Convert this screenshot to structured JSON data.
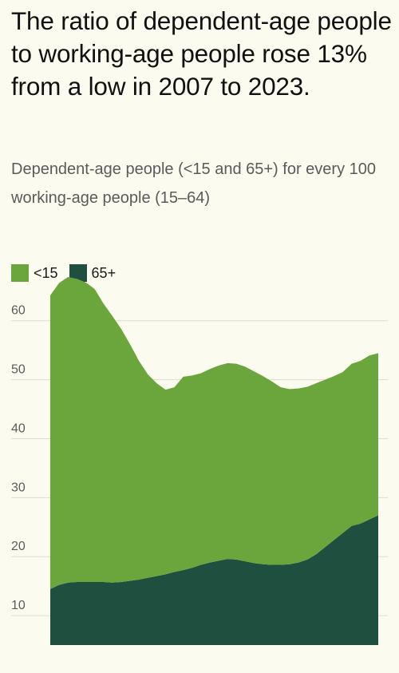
{
  "title": "The ratio of dependent-age people to working-age people rose 13% from a low in 2007 to 2023.",
  "subtitle": "Dependent-age people (<15 and 65+) for every 100 working-age people (15–64)",
  "colors": {
    "under15": "#6aa63c",
    "over65": "#1f4f3f",
    "grid": "#dcdcd2",
    "background": "#fcfbf0"
  },
  "chart_data": {
    "type": "area",
    "stacked": true,
    "ylim": [
      5,
      67
    ],
    "y_ticks": [
      10,
      20,
      30,
      40,
      50,
      60
    ],
    "grid": true,
    "legend_position": "top-left",
    "x": [
      1,
      2,
      3,
      4,
      5,
      6,
      7,
      8,
      9,
      10,
      11,
      12,
      13,
      14,
      15,
      16,
      17,
      18,
      19,
      20,
      21,
      22,
      23,
      24,
      25,
      26,
      27,
      28,
      29,
      30,
      31,
      32,
      33,
      34,
      35,
      36,
      37,
      38
    ],
    "series": [
      {
        "name": "65+",
        "color": "#1f4f3f",
        "values": [
          14.5,
          15.2,
          15.6,
          15.7,
          15.7,
          15.7,
          15.7,
          15.6,
          15.7,
          15.9,
          16.1,
          16.4,
          16.7,
          17.0,
          17.4,
          17.7,
          18.1,
          18.6,
          19.0,
          19.3,
          19.6,
          19.5,
          19.2,
          18.9,
          18.7,
          18.6,
          18.6,
          18.7,
          19.0,
          19.5,
          20.4,
          21.6,
          22.8,
          24.0,
          25.2,
          25.6,
          26.3,
          27.0
        ]
      },
      {
        "name": "<15",
        "color": "#6aa63c",
        "values": [
          49.8,
          51.2,
          51.8,
          51.4,
          50.8,
          49.7,
          47.2,
          45.2,
          42.9,
          40.1,
          37.1,
          34.5,
          32.7,
          31.3,
          31.3,
          32.8,
          32.6,
          32.5,
          32.8,
          33.1,
          33.2,
          33.2,
          33.0,
          32.5,
          31.9,
          31.1,
          30.1,
          29.7,
          29.5,
          29.3,
          29.0,
          28.4,
          27.8,
          27.3,
          27.5,
          27.6,
          27.8,
          27.5
        ]
      }
    ]
  }
}
